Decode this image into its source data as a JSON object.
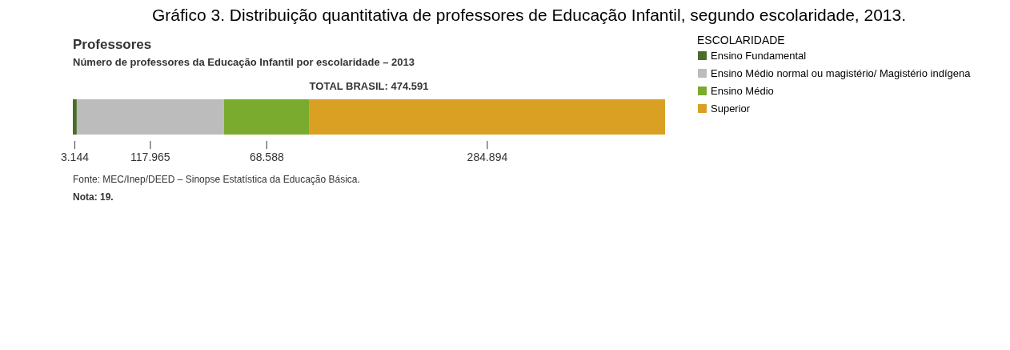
{
  "chart_data": {
    "type": "bar",
    "orientation": "horizontal",
    "stacked": true,
    "title": "Gráfico 3. Distribuição quantitativa de professores de Educação Infantil, segundo escolaridade, 2013.",
    "categories": [
      null
    ],
    "series": [
      {
        "name": "Ensino Fundamental",
        "color": "#4a6e2a",
        "values": [
          3144
        ],
        "value_labels": [
          "3.144"
        ]
      },
      {
        "name": "Ensino Médio normal ou magistério/ Magistério indígena",
        "color": "#bcbcbc",
        "values": [
          117965
        ],
        "value_labels": [
          "117.965"
        ]
      },
      {
        "name": "Ensino Médio",
        "color": "#7aab2e",
        "values": [
          68588
        ],
        "value_labels": [
          "68.588"
        ]
      },
      {
        "name": "Superior",
        "color": "#d9a023",
        "values": [
          284894
        ],
        "value_labels": [
          "284.894"
        ]
      }
    ],
    "legend_title": "ESCOLARIDADE",
    "legend": "right",
    "tick_labels": false,
    "annotations": [
      "Professores",
      "Número de professores da Educação Infantil por escolaridade – 2013",
      "TOTAL BRASIL: 474.591",
      "Fonte: MEC/Inep/DEED – Sinopse Estatística da Educação Básica.",
      "Nota: 19."
    ]
  }
}
